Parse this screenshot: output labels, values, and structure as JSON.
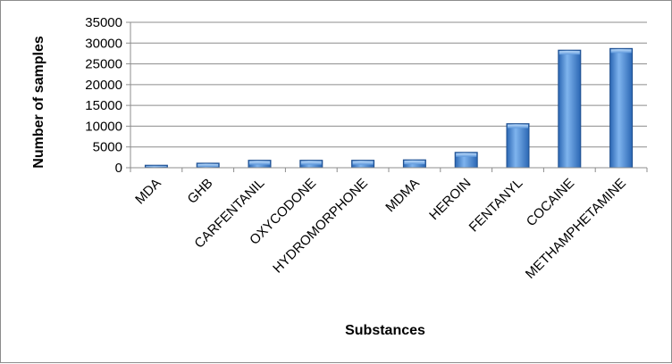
{
  "chart_data": {
    "type": "bar",
    "title": "",
    "xlabel": "Substances",
    "ylabel": "Number of samples",
    "ylim": [
      0,
      35000
    ],
    "yticks": [
      0,
      5000,
      10000,
      15000,
      20000,
      25000,
      30000,
      35000
    ],
    "grid": true,
    "legend": "none",
    "categories": [
      "MDA",
      "GHB",
      "CARFENTANIL",
      "OXYCODONE",
      "HYDROMORPHONE",
      "MDMA",
      "HEROIN",
      "FENTANYL",
      "COCAINE",
      "METHAMPHETAMINE"
    ],
    "values": [
      600,
      1100,
      1800,
      1800,
      1800,
      1900,
      3700,
      10600,
      28300,
      28700
    ],
    "colors": {
      "bar_dark": "#2f6fbf",
      "bar_light": "#8fc0f3",
      "bar_edge": "#1f4f8f",
      "grid": "#8c8c8c"
    }
  }
}
